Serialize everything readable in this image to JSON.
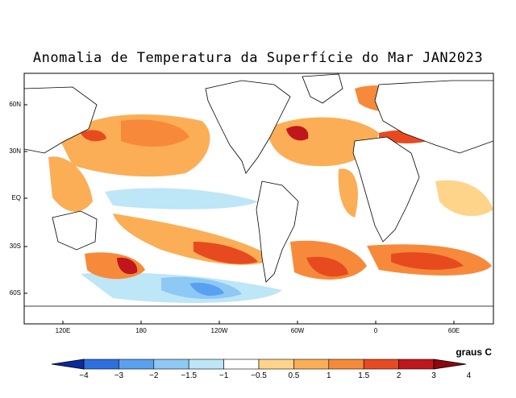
{
  "title": "Anomalia de Temperatura da Superfície do Mar JAN2023",
  "units_label": "graus C",
  "lat_labels": [
    "60N",
    "30N",
    "EQ",
    "30S",
    "60S"
  ],
  "lon_labels": [
    "120E",
    "180",
    "120W",
    "60W",
    "0",
    "60E"
  ],
  "colorbar": {
    "labels": [
      "−4",
      "−3",
      "−2",
      "−1.5",
      "−1",
      "−0.5",
      "0.5",
      "1",
      "1.5",
      "2",
      "3",
      "4"
    ],
    "colors": [
      "#0a2a9e",
      "#2e6fe0",
      "#5aa0f0",
      "#8ec8f5",
      "#bde6f7",
      "#ffffff",
      "#fdd48a",
      "#fbae55",
      "#f78a3a",
      "#e84a1f",
      "#c0161c",
      "#8e0710"
    ]
  },
  "map_data": {
    "warm_regions": [
      "North Pacific",
      "NW Atlantic",
      "Mediterranean",
      "South Atlantic",
      "South Indian Ocean",
      "Tasman Sea"
    ],
    "cool_regions": [
      "Equatorial Pacific",
      "Southeast Pacific"
    ]
  }
}
